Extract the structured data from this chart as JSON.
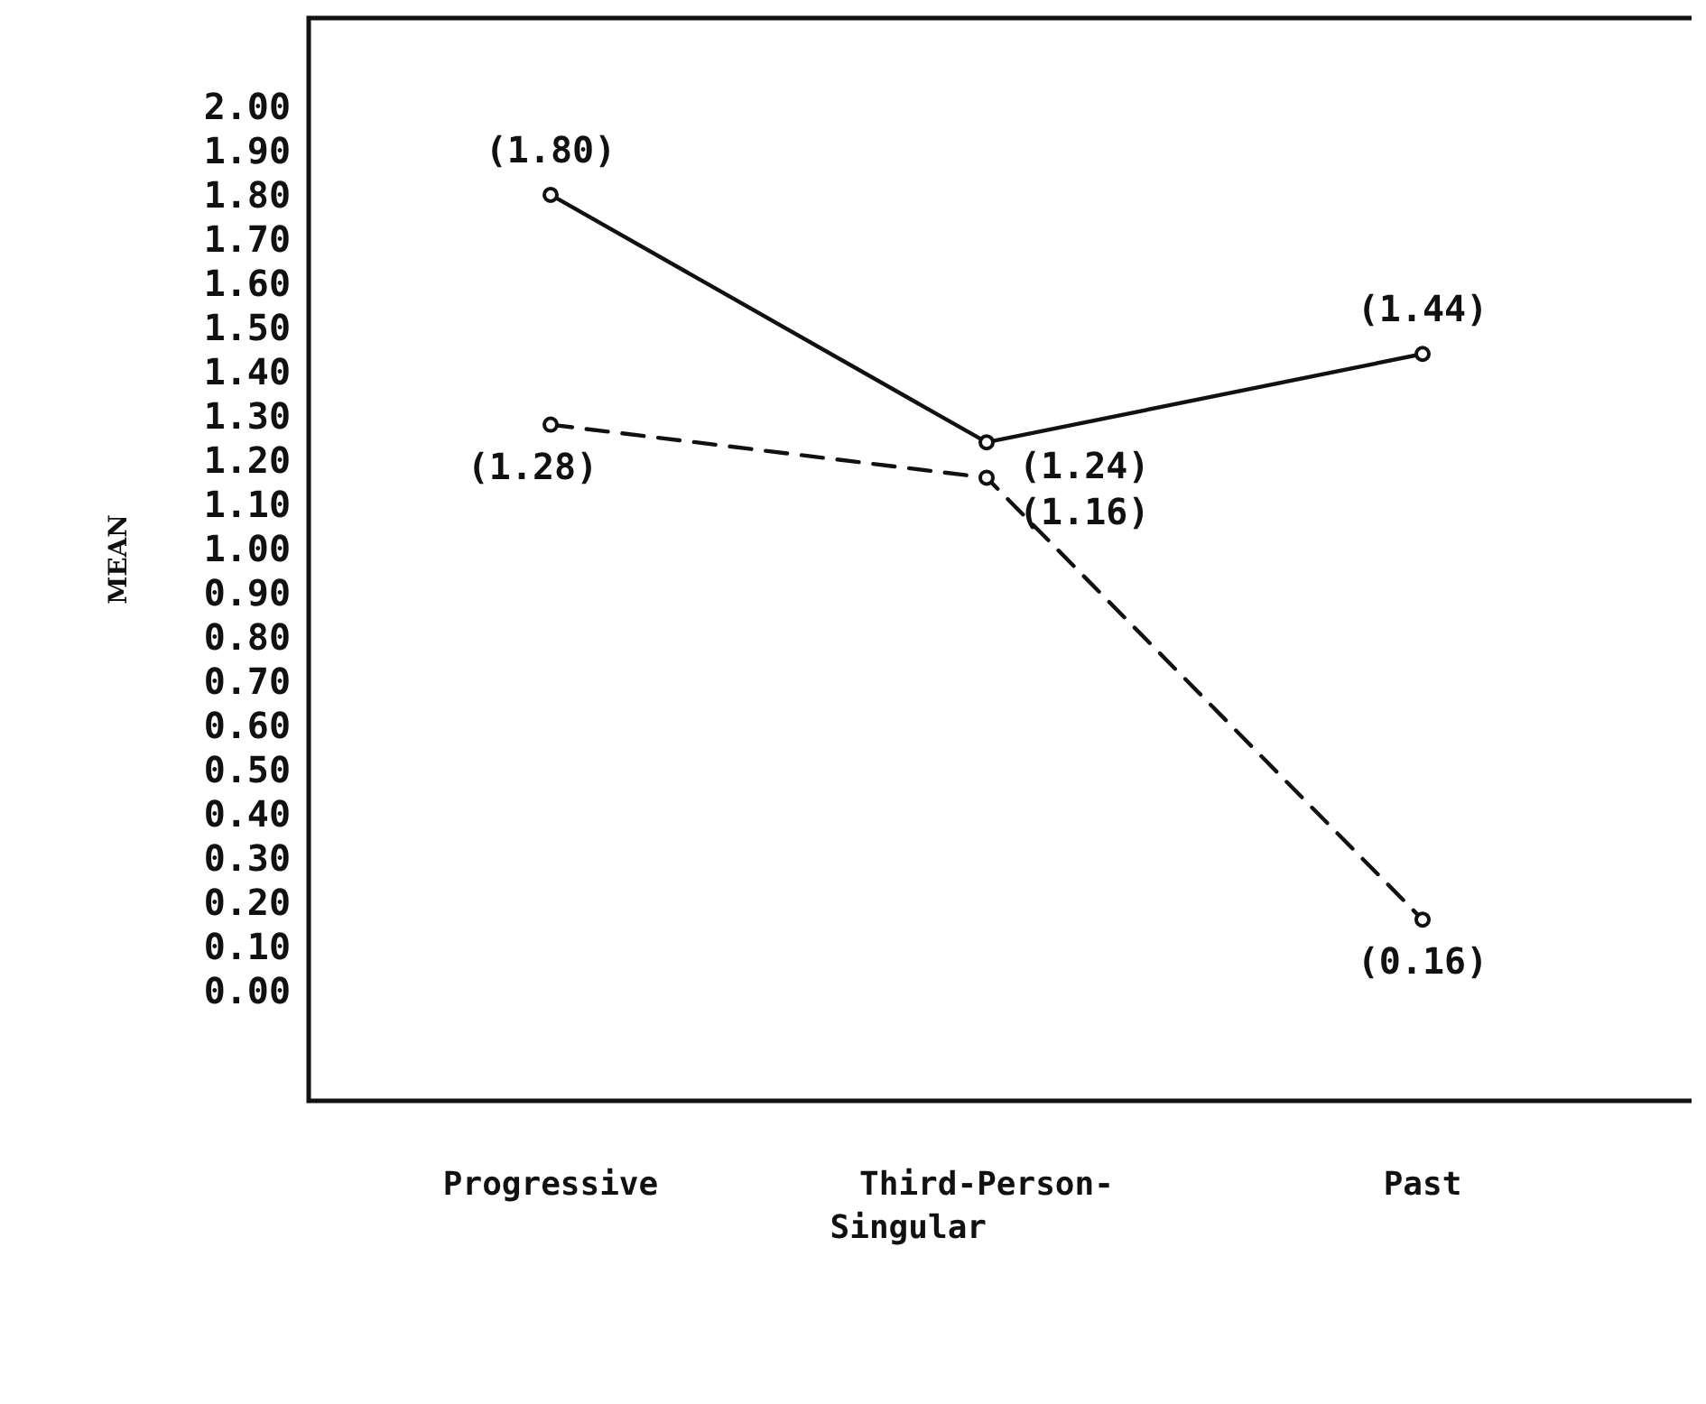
{
  "chart_data": {
    "type": "line",
    "ylabel": "MEAN",
    "categories": [
      "Progressive",
      "Third-Person-Singular",
      "Past"
    ],
    "series": [
      {
        "color": "#111111",
        "line_style": "solid",
        "values": [
          1.8,
          1.24,
          1.44
        ],
        "value_labels": [
          "(1.80)",
          "(1.24)",
          "(1.44)"
        ]
      },
      {
        "color": "#111111",
        "line_style": "dashed",
        "values": [
          1.28,
          1.16,
          0.16
        ],
        "value_labels": [
          "(1.28)",
          "(1.16)",
          "(0.16)"
        ]
      }
    ],
    "ylim": [
      -0.25,
      2.2
    ],
    "yticks": [
      {
        "value": 0,
        "label": "0.00"
      },
      {
        "value": 0.1,
        "label": "0.10"
      },
      {
        "value": 0.2,
        "label": "0.20"
      },
      {
        "value": 0.3,
        "label": "0.30"
      },
      {
        "value": 0.4,
        "label": "0.40"
      },
      {
        "value": 0.5,
        "label": "0.50"
      },
      {
        "value": 0.6,
        "label": "0.60"
      },
      {
        "value": 0.7,
        "label": "0.70"
      },
      {
        "value": 0.8,
        "label": "0.80"
      },
      {
        "value": 0.9,
        "label": "0.90"
      },
      {
        "value": 1,
        "label": "1.00"
      },
      {
        "value": 1.1,
        "label": "1.10"
      },
      {
        "value": 1.2,
        "label": "1.20"
      },
      {
        "value": 1.3,
        "label": "1.30"
      },
      {
        "value": 1.4,
        "label": "1.40"
      },
      {
        "value": 1.5,
        "label": "1.50"
      },
      {
        "value": 1.6,
        "label": "1.60"
      },
      {
        "value": 1.7,
        "label": "1.70"
      },
      {
        "value": 1.8,
        "label": "1.80"
      },
      {
        "value": 1.9,
        "label": "1.90"
      },
      {
        "value": 2,
        "label": "2.00"
      }
    ],
    "marker": "circle",
    "grid": false
  }
}
